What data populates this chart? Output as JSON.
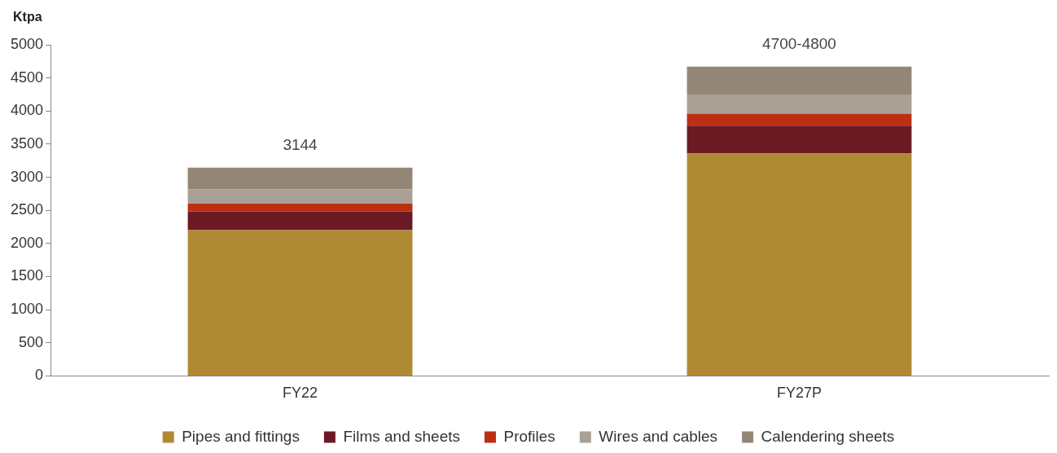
{
  "chart_data": {
    "type": "bar",
    "stacked": true,
    "ylabel": "Ktpa",
    "categories": [
      "FY22",
      "FY27P"
    ],
    "series": [
      {
        "name": "Pipes and fittings",
        "color": "#b08933",
        "values": [
          2200,
          3360
        ]
      },
      {
        "name": "Films and sheets",
        "color": "#6b1a24",
        "values": [
          280,
          420
        ]
      },
      {
        "name": "Profiles",
        "color": "#bb3013",
        "values": [
          120,
          180
        ]
      },
      {
        "name": "Wires and cables",
        "color": "#a9a195",
        "values": [
          220,
          290
        ]
      },
      {
        "name": "Calendering sheets",
        "color": "#948674",
        "values": [
          324,
          420
        ]
      }
    ],
    "totals": [
      "3144",
      "4700-4800"
    ],
    "ylim": [
      0,
      5000
    ],
    "yticks": [
      0,
      500,
      1000,
      1500,
      2000,
      2500,
      3000,
      3500,
      4000,
      4500,
      5000
    ],
    "grid": false,
    "legend": "bottom"
  }
}
